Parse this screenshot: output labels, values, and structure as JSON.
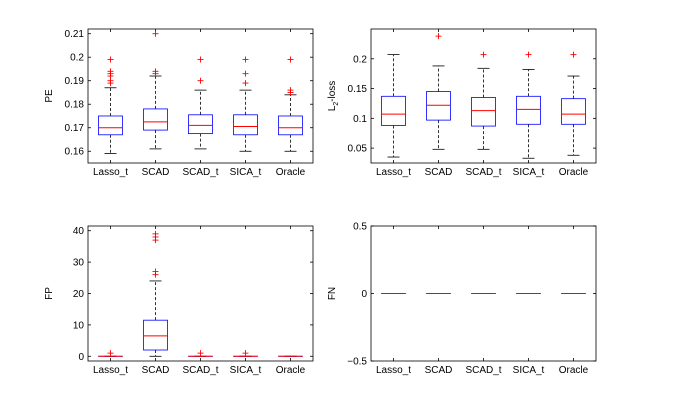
{
  "colors": {
    "box": "#0000ff",
    "median": "#ff0000",
    "whisker": "#000000",
    "outlier": "#ff0000",
    "axis": "#000000"
  },
  "chart_data": [
    {
      "type": "boxplot",
      "ylabel": "PE",
      "ylim": [
        0.155,
        0.212
      ],
      "yticks": [
        0.16,
        0.17,
        0.18,
        0.19,
        0.2,
        0.21
      ],
      "ytick_labels": [
        "0.16",
        "0.17",
        "0.18",
        "0.19",
        "0.2",
        "0.21"
      ],
      "categories": [
        "Lasso_t",
        "SCAD",
        "SCAD_t",
        "SICA_t",
        "Oracle"
      ],
      "boxes": [
        {
          "lower_whisker": 0.159,
          "q1": 0.167,
          "median": 0.17,
          "q3": 0.175,
          "upper_whisker": 0.187,
          "outliers": [
            0.199,
            0.194,
            0.193,
            0.192,
            0.19,
            0.189
          ]
        },
        {
          "lower_whisker": 0.161,
          "q1": 0.169,
          "median": 0.1725,
          "q3": 0.178,
          "upper_whisker": 0.192,
          "outliers": [
            0.21,
            0.194,
            0.193
          ]
        },
        {
          "lower_whisker": 0.161,
          "q1": 0.1675,
          "median": 0.171,
          "q3": 0.1755,
          "upper_whisker": 0.186,
          "outliers": [
            0.199,
            0.19
          ]
        },
        {
          "lower_whisker": 0.16,
          "q1": 0.167,
          "median": 0.1705,
          "q3": 0.1755,
          "upper_whisker": 0.186,
          "outliers": [
            0.199,
            0.193,
            0.189
          ]
        },
        {
          "lower_whisker": 0.16,
          "q1": 0.167,
          "median": 0.17,
          "q3": 0.175,
          "upper_whisker": 0.184,
          "outliers": [
            0.199,
            0.186,
            0.185
          ]
        }
      ]
    },
    {
      "type": "boxplot",
      "ylabel": "L",
      "ylabel_sub": "2",
      "ylabel_suffix": "-loss",
      "ylim": [
        0.025,
        0.25
      ],
      "yticks": [
        0.05,
        0.1,
        0.15,
        0.2
      ],
      "ytick_labels": [
        "0.05",
        "0.1",
        "0.15",
        "0.2"
      ],
      "categories": [
        "Lasso_t",
        "SCAD",
        "SCAD_t",
        "SICA_t",
        "Oracle"
      ],
      "boxes": [
        {
          "lower_whisker": 0.035,
          "q1": 0.088,
          "median": 0.107,
          "q3": 0.137,
          "upper_whisker": 0.207,
          "outliers": []
        },
        {
          "lower_whisker": 0.048,
          "q1": 0.097,
          "median": 0.122,
          "q3": 0.145,
          "upper_whisker": 0.188,
          "outliers": [
            0.238
          ]
        },
        {
          "lower_whisker": 0.048,
          "q1": 0.087,
          "median": 0.113,
          "q3": 0.135,
          "upper_whisker": 0.184,
          "outliers": [
            0.207
          ]
        },
        {
          "lower_whisker": 0.033,
          "q1": 0.09,
          "median": 0.115,
          "q3": 0.137,
          "upper_whisker": 0.182,
          "outliers": [
            0.207
          ]
        },
        {
          "lower_whisker": 0.038,
          "q1": 0.09,
          "median": 0.107,
          "q3": 0.133,
          "upper_whisker": 0.171,
          "outliers": [
            0.207
          ]
        }
      ]
    },
    {
      "type": "boxplot",
      "ylabel": "FP",
      "ylim": [
        -1.5,
        41.5
      ],
      "yticks": [
        0,
        10,
        20,
        30,
        40
      ],
      "ytick_labels": [
        "0",
        "10",
        "20",
        "30",
        "40"
      ],
      "categories": [
        "Lasso_t",
        "SCAD",
        "SCAD_t",
        "SICA_t",
        "Oracle"
      ],
      "boxes": [
        {
          "lower_whisker": 0,
          "q1": 0,
          "median": 0,
          "q3": 0,
          "upper_whisker": 0,
          "outliers": [
            1
          ]
        },
        {
          "lower_whisker": 0,
          "q1": 2,
          "median": 6.5,
          "q3": 11.5,
          "upper_whisker": 24,
          "outliers": [
            39,
            38,
            37,
            27,
            26
          ]
        },
        {
          "lower_whisker": 0,
          "q1": 0,
          "median": 0,
          "q3": 0,
          "upper_whisker": 0,
          "outliers": [
            1
          ]
        },
        {
          "lower_whisker": 0,
          "q1": 0,
          "median": 0,
          "q3": 0,
          "upper_whisker": 0,
          "outliers": [
            1
          ]
        },
        {
          "lower_whisker": 0,
          "q1": 0,
          "median": 0,
          "q3": 0,
          "upper_whisker": 0,
          "outliers": []
        }
      ]
    },
    {
      "type": "boxplot",
      "ylabel": "FN",
      "ylim": [
        -0.5,
        0.5
      ],
      "yticks": [
        -0.5,
        0,
        0.5
      ],
      "ytick_labels": [
        "−0.5",
        "0",
        "0.5"
      ],
      "categories": [
        "Lasso_t",
        "SCAD",
        "SCAD_t",
        "SICA_t",
        "Oracle"
      ],
      "boxes": [
        {
          "lower_whisker": 0,
          "q1": 0,
          "median": 0,
          "q3": 0,
          "upper_whisker": 0,
          "outliers": []
        },
        {
          "lower_whisker": 0,
          "q1": 0,
          "median": 0,
          "q3": 0,
          "upper_whisker": 0,
          "outliers": []
        },
        {
          "lower_whisker": 0,
          "q1": 0,
          "median": 0,
          "q3": 0,
          "upper_whisker": 0,
          "outliers": []
        },
        {
          "lower_whisker": 0,
          "q1": 0,
          "median": 0,
          "q3": 0,
          "upper_whisker": 0,
          "outliers": []
        },
        {
          "lower_whisker": 0,
          "q1": 0,
          "median": 0,
          "q3": 0,
          "upper_whisker": 0,
          "outliers": []
        }
      ]
    }
  ]
}
